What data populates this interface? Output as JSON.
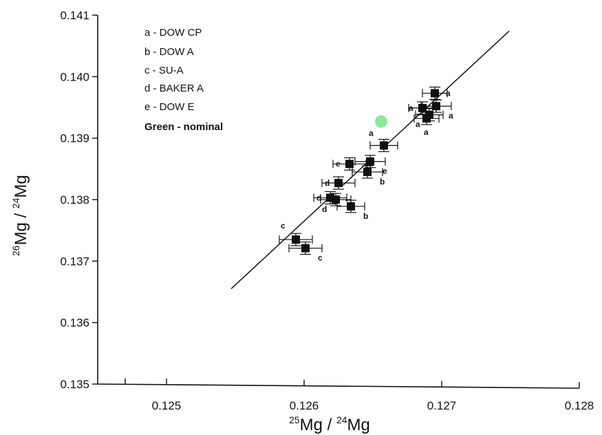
{
  "chart_data": {
    "type": "scatter",
    "xlabel": {
      "iso_top": "25",
      "el_top": "Mg",
      "sep": " / ",
      "iso_bottom": "24",
      "el_bottom": "Mg"
    },
    "ylabel": {
      "iso_top": "26",
      "el_top": "Mg",
      "sep": " / ",
      "iso_bottom": "24",
      "el_bottom": "Mg"
    },
    "xlim": [
      0.1245,
      0.128
    ],
    "ylim": [
      0.135,
      0.141
    ],
    "xticks": [
      0.125,
      0.126,
      0.127,
      0.128
    ],
    "xtick_labels": [
      "0.125",
      "0.126",
      "0.127",
      "0.128"
    ],
    "yticks": [
      0.135,
      0.136,
      0.137,
      0.138,
      0.139,
      0.14,
      0.141
    ],
    "ytick_labels": [
      "0.135",
      "0.136",
      "0.137",
      "0.138",
      "0.139",
      "0.140",
      "0.141"
    ],
    "legend": {
      "placement": "top-left",
      "entries": [
        "a - DOW CP",
        "b - DOW A",
        "c - SU-A",
        "d - BAKER A",
        "e - DOW E"
      ],
      "note": "Green - nominal"
    },
    "fit_line": {
      "from": [
        0.12547,
        0.13655
      ],
      "to": [
        0.12749,
        0.14074
      ]
    },
    "points": [
      {
        "label": "a",
        "x": 0.12695,
        "y": 0.13973,
        "xerr": 9e-05,
        "yerr": 0.0001,
        "label_side": "right"
      },
      {
        "label": "a",
        "x": 0.12686,
        "y": 0.13949,
        "xerr": 0.0001,
        "yerr": 0.0001,
        "label_side": "left"
      },
      {
        "label": "a",
        "x": 0.12696,
        "y": 0.13952,
        "xerr": 0.00011,
        "yerr": 0.0001,
        "label_side": "right-below"
      },
      {
        "label": "a",
        "x": 0.12691,
        "y": 0.13938,
        "xerr": 0.0001,
        "yerr": 0.0001,
        "label_side": "left-below"
      },
      {
        "label": "a",
        "x": 0.12689,
        "y": 0.13932,
        "xerr": 9e-05,
        "yerr": 0.0001,
        "label_side": "below"
      },
      {
        "label": "a",
        "x": 0.12658,
        "y": 0.13888,
        "xerr": 0.0001,
        "yerr": 0.0001,
        "label_side": "above-left"
      },
      {
        "label": "e",
        "x": 0.12633,
        "y": 0.13858,
        "xerr": 0.00012,
        "yerr": 0.0001,
        "label_side": "left"
      },
      {
        "label": "e",
        "x": 0.12648,
        "y": 0.13862,
        "xerr": 0.00011,
        "yerr": 0.0001,
        "label_side": "right-below"
      },
      {
        "label": "b",
        "x": 0.12646,
        "y": 0.13845,
        "xerr": 0.00011,
        "yerr": 0.0001,
        "label_side": "right-below"
      },
      {
        "label": "d",
        "x": 0.12625,
        "y": 0.13827,
        "xerr": 0.00012,
        "yerr": 0.0001,
        "label_side": "left"
      },
      {
        "label": "d",
        "x": 0.12619,
        "y": 0.13803,
        "xerr": 0.00012,
        "yerr": 0.0001,
        "label_side": "left"
      },
      {
        "label": "d",
        "x": 0.12623,
        "y": 0.138,
        "xerr": 0.00011,
        "yerr": 0.0001,
        "label_side": "left-below"
      },
      {
        "label": "b",
        "x": 0.12634,
        "y": 0.13789,
        "xerr": 0.0001,
        "yerr": 0.0001,
        "label_side": "right-below"
      },
      {
        "label": "c",
        "x": 0.12594,
        "y": 0.13735,
        "xerr": 0.00012,
        "yerr": 0.0001,
        "label_side": "left-above"
      },
      {
        "label": "c",
        "x": 0.12601,
        "y": 0.13721,
        "xerr": 0.00012,
        "yerr": 0.0001,
        "label_side": "right-below"
      }
    ],
    "nominal": {
      "x": 0.12656,
      "y": 0.13927,
      "color": "#8ee89e"
    },
    "colors": {
      "points": "#111111",
      "axes": "#111111",
      "nominal": "#8ee89e"
    }
  }
}
